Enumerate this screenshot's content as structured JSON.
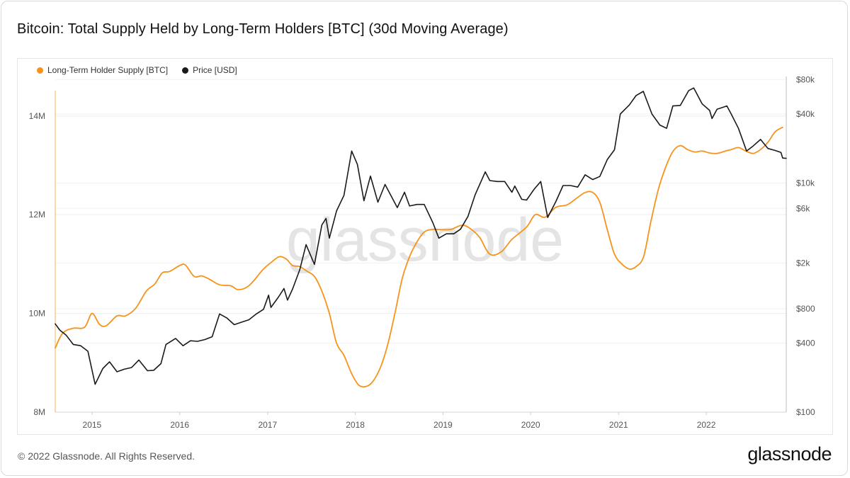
{
  "header": {
    "title": "Bitcoin: Total Supply Held by Long-Term Holders [BTC] (30d Moving Average)"
  },
  "footer": {
    "copyright": "© 2022 Glassnode. All Rights Reserved.",
    "brand": "glassnode"
  },
  "watermark": "glassnode",
  "colors": {
    "lth_supply": "#f7931a",
    "price": "#1a1a1a",
    "grid": "#ececec",
    "axis_text": "#555555"
  },
  "chart_data": {
    "type": "line",
    "title": "Bitcoin: Total Supply Held by Long-Term Holders [BTC] (30d Moving Average)",
    "legend_position": "top-left",
    "grid": true,
    "x_axis": {
      "type": "date",
      "range": [
        "2014-08-01",
        "2022-11-30"
      ],
      "ticks": [
        {
          "date": "2015-01-01",
          "label": "2015"
        },
        {
          "date": "2016-01-01",
          "label": "2016"
        },
        {
          "date": "2017-01-01",
          "label": "2017"
        },
        {
          "date": "2018-01-01",
          "label": "2018"
        },
        {
          "date": "2019-01-01",
          "label": "2019"
        },
        {
          "date": "2020-01-01",
          "label": "2020"
        },
        {
          "date": "2021-01-01",
          "label": "2021"
        },
        {
          "date": "2022-01-01",
          "label": "2022"
        }
      ]
    },
    "y_left": {
      "scale": "linear",
      "range": [
        8000000,
        14800000
      ],
      "ticks": [
        {
          "value": 8000000,
          "label": "8M"
        },
        {
          "value": 10000000,
          "label": "10M"
        },
        {
          "value": 12000000,
          "label": "12M"
        },
        {
          "value": 14000000,
          "label": "14M"
        }
      ]
    },
    "y_right": {
      "scale": "log",
      "range": [
        100,
        85000
      ],
      "ticks": [
        {
          "value": 100,
          "label": "$100"
        },
        {
          "value": 400,
          "label": "$400"
        },
        {
          "value": 800,
          "label": "$800"
        },
        {
          "value": 2000,
          "label": "$2k"
        },
        {
          "value": 6000,
          "label": "$6k"
        },
        {
          "value": 10000,
          "label": "$10k"
        },
        {
          "value": 40000,
          "label": "$40k"
        },
        {
          "value": 80000,
          "label": "$80k"
        }
      ]
    },
    "series": [
      {
        "name": "Long-Term Holder Supply [BTC]",
        "axis": "left",
        "color": "#f7931a",
        "points": [
          [
            "2014-08-01",
            9300000
          ],
          [
            "2014-09-01",
            9600000
          ],
          [
            "2014-10-15",
            9700000
          ],
          [
            "2014-12-01",
            9720000
          ],
          [
            "2015-01-01",
            10000000
          ],
          [
            "2015-02-01",
            9780000
          ],
          [
            "2015-03-01",
            9750000
          ],
          [
            "2015-04-15",
            9950000
          ],
          [
            "2015-05-20",
            9950000
          ],
          [
            "2015-07-01",
            10100000
          ],
          [
            "2015-08-15",
            10450000
          ],
          [
            "2015-09-20",
            10600000
          ],
          [
            "2015-10-20",
            10820000
          ],
          [
            "2015-11-20",
            10850000
          ],
          [
            "2016-01-01",
            10970000
          ],
          [
            "2016-01-25",
            10980000
          ],
          [
            "2016-03-01",
            10750000
          ],
          [
            "2016-04-01",
            10760000
          ],
          [
            "2016-05-01",
            10700000
          ],
          [
            "2016-06-15",
            10580000
          ],
          [
            "2016-08-01",
            10560000
          ],
          [
            "2016-09-01",
            10480000
          ],
          [
            "2016-10-15",
            10560000
          ],
          [
            "2016-12-15",
            10900000
          ],
          [
            "2017-01-20",
            11050000
          ],
          [
            "2017-02-20",
            11150000
          ],
          [
            "2017-03-20",
            11100000
          ],
          [
            "2017-04-15",
            10970000
          ],
          [
            "2017-05-15",
            10950000
          ],
          [
            "2017-06-15",
            10850000
          ],
          [
            "2017-07-15",
            10750000
          ],
          [
            "2017-08-15",
            10450000
          ],
          [
            "2017-09-15",
            10000000
          ],
          [
            "2017-10-15",
            9400000
          ],
          [
            "2017-11-15",
            9150000
          ],
          [
            "2017-12-15",
            8800000
          ],
          [
            "2018-01-15",
            8550000
          ],
          [
            "2018-02-15",
            8520000
          ],
          [
            "2018-03-15",
            8620000
          ],
          [
            "2018-04-15",
            8900000
          ],
          [
            "2018-05-15",
            9350000
          ],
          [
            "2018-06-15",
            10000000
          ],
          [
            "2018-07-15",
            10700000
          ],
          [
            "2018-08-15",
            11150000
          ],
          [
            "2018-09-15",
            11450000
          ],
          [
            "2018-10-15",
            11650000
          ],
          [
            "2018-11-15",
            11700000
          ],
          [
            "2018-12-15",
            11700000
          ],
          [
            "2019-02-01",
            11700000
          ],
          [
            "2019-03-15",
            11780000
          ],
          [
            "2019-04-15",
            11750000
          ],
          [
            "2019-06-01",
            11550000
          ],
          [
            "2019-07-15",
            11200000
          ],
          [
            "2019-09-01",
            11250000
          ],
          [
            "2019-10-15",
            11500000
          ],
          [
            "2019-12-15",
            11750000
          ],
          [
            "2020-01-20",
            12000000
          ],
          [
            "2020-03-01",
            11950000
          ],
          [
            "2020-04-15",
            12150000
          ],
          [
            "2020-06-01",
            12200000
          ],
          [
            "2020-07-15",
            12350000
          ],
          [
            "2020-08-15",
            12450000
          ],
          [
            "2020-09-15",
            12450000
          ],
          [
            "2020-10-15",
            12250000
          ],
          [
            "2020-11-15",
            11700000
          ],
          [
            "2020-12-15",
            11200000
          ],
          [
            "2021-01-15",
            11000000
          ],
          [
            "2021-02-15",
            10900000
          ],
          [
            "2021-03-15",
            10950000
          ],
          [
            "2021-04-15",
            11150000
          ],
          [
            "2021-05-15",
            11850000
          ],
          [
            "2021-06-15",
            12500000
          ],
          [
            "2021-07-15",
            12950000
          ],
          [
            "2021-08-15",
            13280000
          ],
          [
            "2021-09-15",
            13400000
          ],
          [
            "2021-10-15",
            13320000
          ],
          [
            "2021-11-15",
            13270000
          ],
          [
            "2021-12-15",
            13290000
          ],
          [
            "2022-01-15",
            13250000
          ],
          [
            "2022-02-15",
            13240000
          ],
          [
            "2022-03-15",
            13280000
          ],
          [
            "2022-04-15",
            13320000
          ],
          [
            "2022-05-15",
            13360000
          ],
          [
            "2022-06-15",
            13290000
          ],
          [
            "2022-07-15",
            13240000
          ],
          [
            "2022-08-15",
            13320000
          ],
          [
            "2022-09-15",
            13470000
          ],
          [
            "2022-10-15",
            13680000
          ],
          [
            "2022-11-15",
            13770000
          ]
        ]
      },
      {
        "name": "Price [USD]",
        "axis": "right",
        "color": "#1a1a1a",
        "points": [
          [
            "2014-08-01",
            590
          ],
          [
            "2014-08-20",
            520
          ],
          [
            "2014-09-15",
            470
          ],
          [
            "2014-10-15",
            390
          ],
          [
            "2014-11-15",
            380
          ],
          [
            "2014-12-15",
            340
          ],
          [
            "2015-01-14",
            175
          ],
          [
            "2015-02-15",
            240
          ],
          [
            "2015-03-15",
            275
          ],
          [
            "2015-04-15",
            225
          ],
          [
            "2015-05-15",
            237
          ],
          [
            "2015-06-15",
            245
          ],
          [
            "2015-07-15",
            285
          ],
          [
            "2015-08-20",
            230
          ],
          [
            "2015-09-15",
            232
          ],
          [
            "2015-10-15",
            265
          ],
          [
            "2015-11-05",
            390
          ],
          [
            "2015-12-15",
            440
          ],
          [
            "2016-01-15",
            380
          ],
          [
            "2016-02-15",
            420
          ],
          [
            "2016-03-15",
            415
          ],
          [
            "2016-04-15",
            430
          ],
          [
            "2016-05-15",
            455
          ],
          [
            "2016-06-15",
            720
          ],
          [
            "2016-07-15",
            665
          ],
          [
            "2016-08-15",
            580
          ],
          [
            "2016-09-15",
            610
          ],
          [
            "2016-10-15",
            640
          ],
          [
            "2016-11-15",
            720
          ],
          [
            "2016-12-15",
            790
          ],
          [
            "2017-01-05",
            1050
          ],
          [
            "2017-01-15",
            820
          ],
          [
            "2017-02-15",
            1010
          ],
          [
            "2017-03-10",
            1200
          ],
          [
            "2017-03-25",
            950
          ],
          [
            "2017-04-15",
            1190
          ],
          [
            "2017-05-15",
            1750
          ],
          [
            "2017-06-10",
            2900
          ],
          [
            "2017-07-15",
            1950
          ],
          [
            "2017-08-15",
            4300
          ],
          [
            "2017-09-01",
            4900
          ],
          [
            "2017-09-15",
            3300
          ],
          [
            "2017-10-15",
            5700
          ],
          [
            "2017-11-15",
            7800
          ],
          [
            "2017-12-17",
            19000
          ],
          [
            "2018-01-10",
            14500
          ],
          [
            "2018-02-06",
            7000
          ],
          [
            "2018-03-05",
            11500
          ],
          [
            "2018-04-05",
            6800
          ],
          [
            "2018-05-05",
            9700
          ],
          [
            "2018-06-25",
            6100
          ],
          [
            "2018-07-25",
            8300
          ],
          [
            "2018-08-15",
            6300
          ],
          [
            "2018-09-15",
            6500
          ],
          [
            "2018-10-15",
            6500
          ],
          [
            "2018-11-20",
            4500
          ],
          [
            "2018-12-15",
            3300
          ],
          [
            "2019-01-15",
            3600
          ],
          [
            "2019-02-15",
            3600
          ],
          [
            "2019-03-15",
            3950
          ],
          [
            "2019-04-15",
            5100
          ],
          [
            "2019-05-15",
            7900
          ],
          [
            "2019-06-26",
            12500
          ],
          [
            "2019-07-15",
            10500
          ],
          [
            "2019-08-15",
            10300
          ],
          [
            "2019-09-15",
            10300
          ],
          [
            "2019-10-15",
            8300
          ],
          [
            "2019-10-27",
            9400
          ],
          [
            "2019-11-25",
            7200
          ],
          [
            "2019-12-15",
            7100
          ],
          [
            "2020-01-15",
            8800
          ],
          [
            "2020-02-12",
            10300
          ],
          [
            "2020-03-12",
            5000
          ],
          [
            "2020-04-15",
            6900
          ],
          [
            "2020-05-15",
            9500
          ],
          [
            "2020-06-15",
            9500
          ],
          [
            "2020-07-15",
            9200
          ],
          [
            "2020-08-15",
            11800
          ],
          [
            "2020-09-15",
            10700
          ],
          [
            "2020-10-15",
            11400
          ],
          [
            "2020-11-15",
            16000
          ],
          [
            "2020-12-15",
            19500
          ],
          [
            "2021-01-08",
            40000
          ],
          [
            "2021-02-15",
            48000
          ],
          [
            "2021-03-15",
            58000
          ],
          [
            "2021-04-14",
            63000
          ],
          [
            "2021-05-20",
            40000
          ],
          [
            "2021-06-22",
            32000
          ],
          [
            "2021-07-20",
            30000
          ],
          [
            "2021-08-15",
            47000
          ],
          [
            "2021-09-15",
            47500
          ],
          [
            "2021-10-20",
            64000
          ],
          [
            "2021-11-10",
            67500
          ],
          [
            "2021-12-15",
            49000
          ],
          [
            "2022-01-15",
            43000
          ],
          [
            "2022-01-25",
            36500
          ],
          [
            "2022-02-15",
            44000
          ],
          [
            "2022-03-28",
            47000
          ],
          [
            "2022-04-15",
            40000
          ],
          [
            "2022-05-15",
            30000
          ],
          [
            "2022-06-18",
            19000
          ],
          [
            "2022-07-15",
            21000
          ],
          [
            "2022-08-15",
            24000
          ],
          [
            "2022-09-15",
            20000
          ],
          [
            "2022-10-15",
            19200
          ],
          [
            "2022-11-08",
            18500
          ],
          [
            "2022-11-15",
            16500
          ],
          [
            "2022-11-30",
            16400
          ]
        ]
      }
    ]
  }
}
